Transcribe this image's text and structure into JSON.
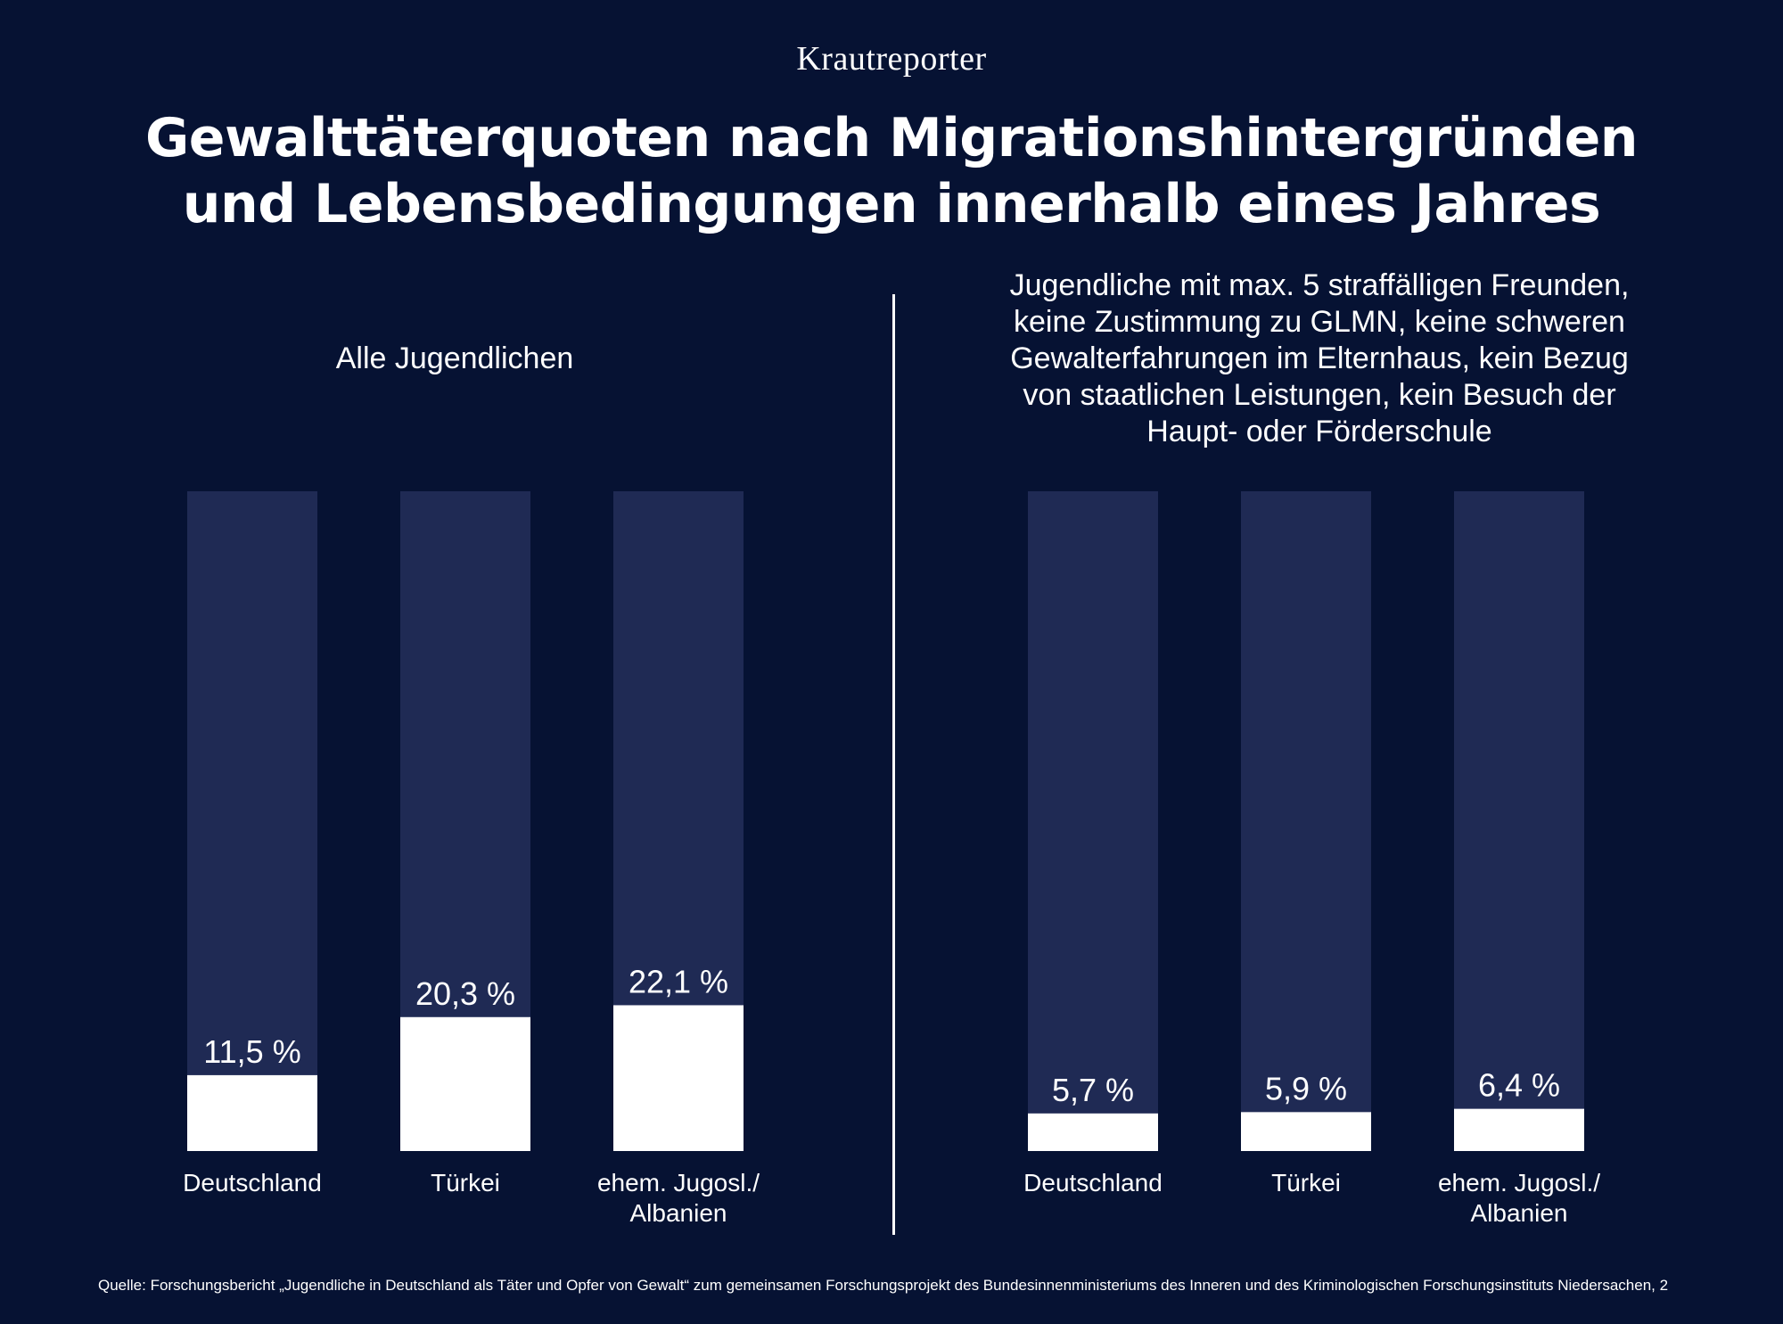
{
  "brand": "Krautreporter",
  "title_line1": "Gewalttäterquoten nach Migrationshintergründen",
  "title_line2": "und Lebensbedingungen innerhalb eines Jahres",
  "source": "Quelle: Forschungsbericht „Jugendliche in Deutschland als Täter und Opfer von Gewalt“ zum gemeinsamen Forschungsprojekt des Bundesinnenministeriums des Inneren und des Kriminologischen Forschungsinstituts Niedersachen, 2",
  "colors": {
    "background": "#061233",
    "track": "#1f2a54",
    "bar": "#ffffff",
    "text": "#ffffff"
  },
  "chart_data": [
    {
      "type": "bar",
      "title": "Alle Jugendlichen",
      "categories": [
        "Deutschland",
        "Türkei",
        "ehem. Jugosl./\nAlbanien"
      ],
      "values": [
        11.5,
        20.3,
        22.1
      ],
      "labels": [
        "11,5 %",
        "20,3 %",
        "22,1 %"
      ],
      "ylim": [
        0,
        100
      ],
      "unit": "%",
      "grid": false
    },
    {
      "type": "bar",
      "title": "Jugendliche mit max. 5 straffälligen Freunden,\nkeine Zustimmung zu GLMN, keine schweren\nGewalterfahrungen im Elternhaus, kein Bezug\nvon staatlichen Leistungen, kein Besuch der\nHaupt- oder Förderschule",
      "categories": [
        "Deutschland",
        "Türkei",
        "ehem. Jugosl./\nAlbanien"
      ],
      "values": [
        5.7,
        5.9,
        6.4
      ],
      "labels": [
        "5,7 %",
        "5,9 %",
        "6,4 %"
      ],
      "ylim": [
        0,
        100
      ],
      "unit": "%",
      "grid": false
    }
  ]
}
